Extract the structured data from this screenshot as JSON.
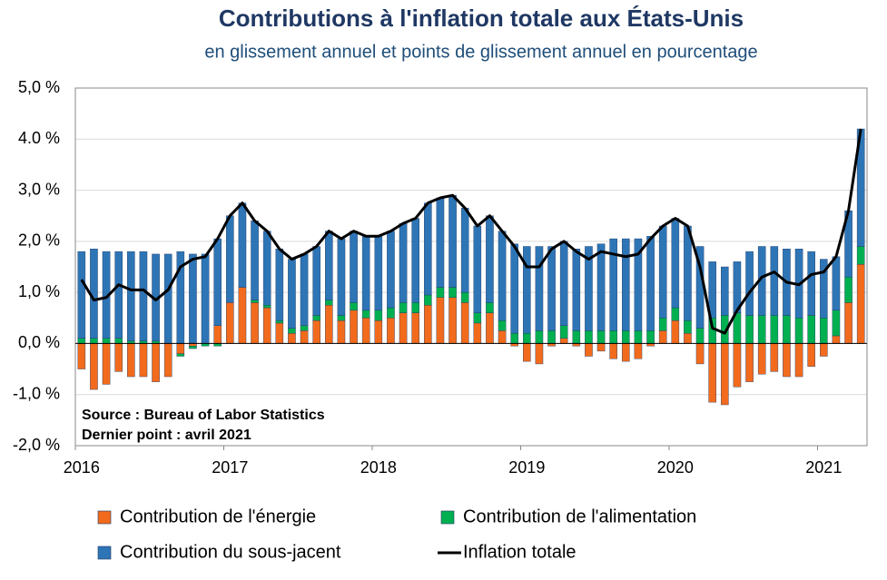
{
  "chart_data": {
    "type": "bar",
    "title": "Contributions à l'inflation totale aux États-Unis",
    "subtitle": "en glissement annuel et points de glissement annuel en pourcentage",
    "annotations": [
      "Source : Bureau of Labor Statistics",
      "Dernier point : avril 2021"
    ],
    "categories": [
      "2016",
      null,
      null,
      null,
      null,
      null,
      null,
      null,
      null,
      null,
      null,
      null,
      "2017",
      null,
      null,
      null,
      null,
      null,
      null,
      null,
      null,
      null,
      null,
      null,
      "2018",
      null,
      null,
      null,
      null,
      null,
      null,
      null,
      null,
      null,
      null,
      null,
      "2019",
      null,
      null,
      null,
      null,
      null,
      null,
      null,
      null,
      null,
      null,
      null,
      "2020",
      null,
      null,
      null,
      null,
      null,
      null,
      null,
      null,
      null,
      null,
      null,
      "2021",
      null,
      null,
      null
    ],
    "ylim": [
      -2,
      5
    ],
    "yticks": [
      {
        "value": -2,
        "label": "-2,0 %"
      },
      {
        "value": -1,
        "label": "-1,0 %"
      },
      {
        "value": 0,
        "label": "0,0 %"
      },
      {
        "value": 1,
        "label": "1,0 %"
      },
      {
        "value": 2,
        "label": "2,0 %"
      },
      {
        "value": 3,
        "label": "3,0 %"
      },
      {
        "value": 4,
        "label": "4.0 %"
      },
      {
        "value": 5,
        "label": "5,0 %"
      }
    ],
    "grid": true,
    "series": [
      {
        "name": "Contribution de l'énergie",
        "color": "#f26b1d",
        "type": "bar",
        "values": [
          -0.5,
          -0.9,
          -0.8,
          -0.55,
          -0.65,
          -0.65,
          -0.75,
          -0.65,
          -0.2,
          -0.05,
          0.0,
          0.35,
          0.8,
          1.1,
          0.8,
          0.7,
          0.4,
          0.2,
          0.25,
          0.45,
          0.75,
          0.45,
          0.65,
          0.5,
          0.45,
          0.5,
          0.6,
          0.6,
          0.75,
          0.9,
          0.9,
          0.8,
          0.4,
          0.6,
          0.25,
          -0.05,
          -0.35,
          -0.4,
          -0.05,
          0.1,
          -0.05,
          -0.25,
          -0.15,
          -0.3,
          -0.35,
          -0.3,
          -0.05,
          0.25,
          0.45,
          0.2,
          -0.4,
          -1.15,
          -1.2,
          -0.85,
          -0.75,
          -0.6,
          -0.55,
          -0.65,
          -0.65,
          -0.45,
          -0.25,
          0.15,
          0.8,
          1.55
        ]
      },
      {
        "name": "Contribution de l'alimentation",
        "color": "#00b050",
        "type": "bar",
        "values": [
          0.1,
          0.1,
          0.1,
          0.1,
          0.05,
          0.05,
          0.05,
          0.0,
          -0.05,
          -0.05,
          -0.05,
          -0.05,
          0.0,
          0.0,
          0.05,
          0.05,
          0.05,
          0.1,
          0.1,
          0.1,
          0.1,
          0.1,
          0.15,
          0.15,
          0.2,
          0.2,
          0.2,
          0.2,
          0.2,
          0.2,
          0.2,
          0.2,
          0.2,
          0.2,
          0.2,
          0.2,
          0.2,
          0.25,
          0.25,
          0.25,
          0.25,
          0.25,
          0.25,
          0.25,
          0.25,
          0.25,
          0.25,
          0.25,
          0.25,
          0.25,
          0.3,
          0.5,
          0.55,
          0.6,
          0.55,
          0.55,
          0.55,
          0.55,
          0.5,
          0.55,
          0.5,
          0.5,
          0.5,
          0.35
        ]
      },
      {
        "name": "Contribution du sous-jacent",
        "color": "#2e75b6",
        "type": "bar",
        "values": [
          1.7,
          1.75,
          1.7,
          1.7,
          1.75,
          1.75,
          1.7,
          1.75,
          1.8,
          1.75,
          1.75,
          1.7,
          1.7,
          1.65,
          1.55,
          1.45,
          1.4,
          1.35,
          1.4,
          1.35,
          1.35,
          1.5,
          1.4,
          1.45,
          1.45,
          1.5,
          1.55,
          1.65,
          1.8,
          1.75,
          1.8,
          1.65,
          1.7,
          1.7,
          1.75,
          1.75,
          1.7,
          1.65,
          1.65,
          1.65,
          1.6,
          1.65,
          1.7,
          1.8,
          1.8,
          1.8,
          1.85,
          1.8,
          1.75,
          1.85,
          1.6,
          1.1,
          0.95,
          1.0,
          1.25,
          1.35,
          1.35,
          1.3,
          1.35,
          1.25,
          1.15,
          1.05,
          1.3,
          2.3
        ]
      },
      {
        "name": "Inflation totale",
        "color": "#000000",
        "type": "line",
        "values": [
          1.25,
          0.85,
          0.9,
          1.15,
          1.05,
          1.05,
          0.85,
          1.05,
          1.5,
          1.65,
          1.7,
          2.05,
          2.5,
          2.75,
          2.4,
          2.2,
          1.85,
          1.65,
          1.75,
          1.9,
          2.2,
          2.05,
          2.2,
          2.1,
          2.1,
          2.2,
          2.35,
          2.45,
          2.75,
          2.85,
          2.9,
          2.65,
          2.3,
          2.5,
          2.2,
          1.9,
          1.5,
          1.5,
          1.85,
          2.0,
          1.8,
          1.65,
          1.8,
          1.75,
          1.7,
          1.75,
          2.05,
          2.3,
          2.45,
          2.3,
          1.5,
          0.3,
          0.2,
          0.65,
          1.0,
          1.3,
          1.4,
          1.2,
          1.15,
          1.35,
          1.4,
          1.7,
          2.6,
          4.2
        ]
      }
    ]
  }
}
